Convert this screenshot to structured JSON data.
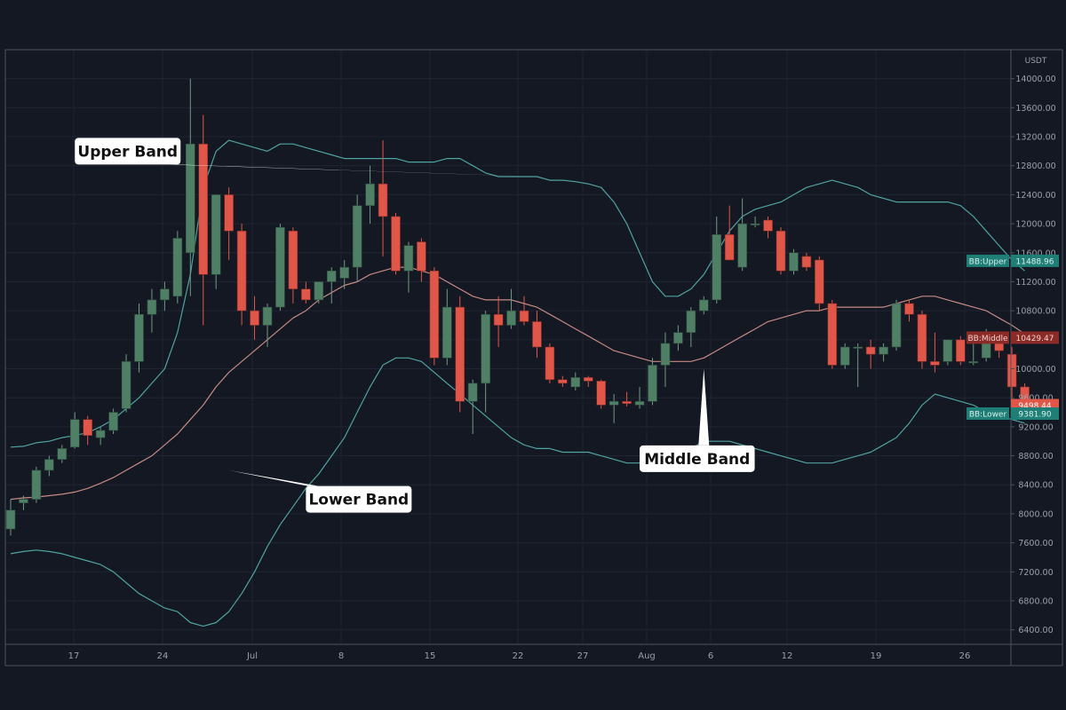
{
  "chart_data": {
    "type": "candlestick",
    "title": "",
    "y_unit": "USDT",
    "ylim": [
      6200,
      14400
    ],
    "y_ticks": [
      6400,
      6800,
      7200,
      7600,
      8000,
      8400,
      8800,
      9200,
      9600,
      10000,
      10400,
      10800,
      11200,
      11600,
      12000,
      12400,
      12800,
      13200,
      13600,
      14000
    ],
    "x_ticks": [
      "17",
      "24",
      "Jul",
      "8",
      "15",
      "22",
      "27",
      "Aug",
      "6",
      "12",
      "19",
      "26"
    ],
    "grid": true,
    "colors": {
      "background": "#141822",
      "grid": "#1f2534",
      "border": "#4a5260",
      "axis_text": "#9aa0ab",
      "up_candle": "#4f8066",
      "down_candle": "#e0574a",
      "upper_band": "#4fa3a0",
      "lower_band": "#4fa3a0",
      "middle_band": "#c58a84",
      "callout_bg": "#ffffff",
      "callout_text": "#111111"
    },
    "candles": [
      {
        "o": 7790,
        "h": 8200,
        "l": 7700,
        "c": 8050
      },
      {
        "o": 8150,
        "h": 8250,
        "l": 8050,
        "c": 8200
      },
      {
        "o": 8200,
        "h": 8650,
        "l": 8150,
        "c": 8600
      },
      {
        "o": 8600,
        "h": 8800,
        "l": 8520,
        "c": 8750
      },
      {
        "o": 8750,
        "h": 8950,
        "l": 8700,
        "c": 8900
      },
      {
        "o": 8920,
        "h": 9400,
        "l": 8900,
        "c": 9300
      },
      {
        "o": 9300,
        "h": 9350,
        "l": 8950,
        "c": 9080
      },
      {
        "o": 9050,
        "h": 9200,
        "l": 8950,
        "c": 9150
      },
      {
        "o": 9150,
        "h": 9450,
        "l": 9100,
        "c": 9400
      },
      {
        "o": 9450,
        "h": 10200,
        "l": 9400,
        "c": 10100
      },
      {
        "o": 10100,
        "h": 10900,
        "l": 9950,
        "c": 10750
      },
      {
        "o": 10750,
        "h": 11100,
        "l": 10500,
        "c": 10950
      },
      {
        "o": 10950,
        "h": 11200,
        "l": 10800,
        "c": 11100
      },
      {
        "o": 11000,
        "h": 11900,
        "l": 10900,
        "c": 11800
      },
      {
        "o": 11600,
        "h": 14000,
        "l": 11000,
        "c": 13100
      },
      {
        "o": 13100,
        "h": 13500,
        "l": 10600,
        "c": 11300
      },
      {
        "o": 11300,
        "h": 12400,
        "l": 11100,
        "c": 12400
      },
      {
        "o": 12400,
        "h": 12500,
        "l": 11500,
        "c": 11900
      },
      {
        "o": 11900,
        "h": 12000,
        "l": 10600,
        "c": 10800
      },
      {
        "o": 10800,
        "h": 11000,
        "l": 10400,
        "c": 10600
      },
      {
        "o": 10600,
        "h": 10900,
        "l": 10300,
        "c": 10850
      },
      {
        "o": 10850,
        "h": 12000,
        "l": 10800,
        "c": 11950
      },
      {
        "o": 11900,
        "h": 11950,
        "l": 10900,
        "c": 11100
      },
      {
        "o": 11100,
        "h": 11200,
        "l": 10900,
        "c": 10950
      },
      {
        "o": 10950,
        "h": 11200,
        "l": 10900,
        "c": 11200
      },
      {
        "o": 11200,
        "h": 11400,
        "l": 10900,
        "c": 11350
      },
      {
        "o": 11250,
        "h": 11500,
        "l": 11100,
        "c": 11400
      },
      {
        "o": 11400,
        "h": 12400,
        "l": 11200,
        "c": 12250
      },
      {
        "o": 12250,
        "h": 12800,
        "l": 12000,
        "c": 12550
      },
      {
        "o": 12550,
        "h": 13150,
        "l": 11550,
        "c": 12100
      },
      {
        "o": 12100,
        "h": 12150,
        "l": 11300,
        "c": 11350
      },
      {
        "o": 11350,
        "h": 11750,
        "l": 11050,
        "c": 11700
      },
      {
        "o": 11750,
        "h": 11800,
        "l": 11200,
        "c": 11350
      },
      {
        "o": 11350,
        "h": 11400,
        "l": 10050,
        "c": 10150
      },
      {
        "o": 10150,
        "h": 11100,
        "l": 10050,
        "c": 10850
      },
      {
        "o": 10850,
        "h": 11000,
        "l": 9400,
        "c": 9550
      },
      {
        "o": 9550,
        "h": 9850,
        "l": 9100,
        "c": 9800
      },
      {
        "o": 9800,
        "h": 10800,
        "l": 9400,
        "c": 10750
      },
      {
        "o": 10750,
        "h": 11000,
        "l": 10300,
        "c": 10600
      },
      {
        "o": 10600,
        "h": 11100,
        "l": 10550,
        "c": 10800
      },
      {
        "o": 10800,
        "h": 11000,
        "l": 10600,
        "c": 10650
      },
      {
        "o": 10650,
        "h": 10800,
        "l": 10150,
        "c": 10300
      },
      {
        "o": 10300,
        "h": 10350,
        "l": 9800,
        "c": 9850
      },
      {
        "o": 9850,
        "h": 9900,
        "l": 9750,
        "c": 9800
      },
      {
        "o": 9750,
        "h": 9950,
        "l": 9700,
        "c": 9880
      },
      {
        "o": 9880,
        "h": 9900,
        "l": 9750,
        "c": 9830
      },
      {
        "o": 9830,
        "h": 9850,
        "l": 9450,
        "c": 9500
      },
      {
        "o": 9500,
        "h": 9650,
        "l": 9250,
        "c": 9550
      },
      {
        "o": 9550,
        "h": 9680,
        "l": 9480,
        "c": 9520
      },
      {
        "o": 9500,
        "h": 9750,
        "l": 9450,
        "c": 9550
      },
      {
        "o": 9550,
        "h": 10150,
        "l": 9500,
        "c": 10050
      },
      {
        "o": 10050,
        "h": 10500,
        "l": 9750,
        "c": 10350
      },
      {
        "o": 10350,
        "h": 10600,
        "l": 10250,
        "c": 10500
      },
      {
        "o": 10500,
        "h": 10850,
        "l": 10300,
        "c": 10800
      },
      {
        "o": 10800,
        "h": 11000,
        "l": 10750,
        "c": 10950
      },
      {
        "o": 10950,
        "h": 12100,
        "l": 10900,
        "c": 11850
      },
      {
        "o": 11850,
        "h": 12250,
        "l": 11500,
        "c": 11500
      },
      {
        "o": 11400,
        "h": 12350,
        "l": 11350,
        "c": 12000
      },
      {
        "o": 12000,
        "h": 12100,
        "l": 11950,
        "c": 12000
      },
      {
        "o": 12050,
        "h": 12100,
        "l": 11800,
        "c": 11900
      },
      {
        "o": 11900,
        "h": 11950,
        "l": 11300,
        "c": 11350
      },
      {
        "o": 11350,
        "h": 11650,
        "l": 11300,
        "c": 11600
      },
      {
        "o": 11550,
        "h": 11600,
        "l": 11350,
        "c": 11400
      },
      {
        "o": 11500,
        "h": 11550,
        "l": 10800,
        "c": 10900
      },
      {
        "o": 10900,
        "h": 10950,
        "l": 10000,
        "c": 10050
      },
      {
        "o": 10050,
        "h": 10350,
        "l": 10000,
        "c": 10300
      },
      {
        "o": 10300,
        "h": 10350,
        "l": 9750,
        "c": 10300
      },
      {
        "o": 10300,
        "h": 10400,
        "l": 10000,
        "c": 10200
      },
      {
        "o": 10200,
        "h": 10350,
        "l": 10100,
        "c": 10300
      },
      {
        "o": 10300,
        "h": 10950,
        "l": 10250,
        "c": 10900
      },
      {
        "o": 10900,
        "h": 10950,
        "l": 10650,
        "c": 10750
      },
      {
        "o": 10750,
        "h": 10800,
        "l": 10000,
        "c": 10100
      },
      {
        "o": 10100,
        "h": 10500,
        "l": 9950,
        "c": 10050
      },
      {
        "o": 10100,
        "h": 10400,
        "l": 10050,
        "c": 10400
      },
      {
        "o": 10400,
        "h": 10450,
        "l": 10050,
        "c": 10100
      },
      {
        "o": 10100,
        "h": 10400,
        "l": 10050,
        "c": 10100
      },
      {
        "o": 10150,
        "h": 10550,
        "l": 10100,
        "c": 10400
      },
      {
        "o": 10400,
        "h": 10500,
        "l": 10150,
        "c": 10250
      },
      {
        "o": 10200,
        "h": 10300,
        "l": 9550,
        "c": 9750
      },
      {
        "o": 9750,
        "h": 9800,
        "l": 9400,
        "c": 9500
      }
    ],
    "series": [
      {
        "name": "BB:Upper",
        "values": [
          8920,
          8930,
          8980,
          9000,
          9050,
          9080,
          9120,
          9200,
          9300,
          9450,
          9600,
          9800,
          10000,
          10500,
          11300,
          12500,
          13000,
          13150,
          13100,
          13050,
          13000,
          13100,
          13100,
          13050,
          13000,
          12950,
          12900,
          12900,
          12900,
          12900,
          12900,
          12850,
          12850,
          12850,
          12900,
          12900,
          12800,
          12700,
          12650,
          12650,
          12650,
          12650,
          12600,
          12600,
          12580,
          12550,
          12500,
          12300,
          12000,
          11600,
          11200,
          11000,
          11000,
          11100,
          11300,
          11600,
          11900,
          12100,
          12200,
          12250,
          12300,
          12400,
          12500,
          12550,
          12600,
          12550,
          12500,
          12400,
          12350,
          12300,
          12300,
          12300,
          12300,
          12300,
          12250,
          12100,
          11900,
          11700,
          11500,
          11350
        ]
      },
      {
        "name": "BB:Middle",
        "values": [
          8200,
          8220,
          8230,
          8250,
          8270,
          8300,
          8350,
          8420,
          8500,
          8600,
          8700,
          8800,
          8950,
          9100,
          9300,
          9500,
          9750,
          9950,
          10100,
          10250,
          10400,
          10550,
          10700,
          10800,
          10950,
          11050,
          11150,
          11200,
          11300,
          11350,
          11400,
          11400,
          11350,
          11300,
          11200,
          11100,
          11000,
          10950,
          10950,
          10950,
          10900,
          10850,
          10750,
          10650,
          10550,
          10450,
          10350,
          10250,
          10200,
          10150,
          10100,
          10100,
          10100,
          10100,
          10150,
          10250,
          10350,
          10450,
          10550,
          10650,
          10700,
          10750,
          10800,
          10800,
          10850,
          10850,
          10850,
          10850,
          10850,
          10900,
          10950,
          11000,
          11000,
          10950,
          10900,
          10850,
          10800,
          10700,
          10600,
          10480
        ]
      },
      {
        "name": "BB:Lower",
        "values": [
          7450,
          7480,
          7500,
          7480,
          7450,
          7400,
          7350,
          7300,
          7200,
          7050,
          6900,
          6800,
          6700,
          6650,
          6500,
          6450,
          6500,
          6650,
          6900,
          7200,
          7550,
          7850,
          8100,
          8350,
          8550,
          8800,
          9050,
          9400,
          9750,
          10050,
          10150,
          10150,
          10100,
          9950,
          9800,
          9650,
          9500,
          9350,
          9200,
          9050,
          8950,
          8900,
          8900,
          8850,
          8850,
          8850,
          8800,
          8750,
          8700,
          8700,
          8750,
          8800,
          8850,
          8900,
          9000,
          9000,
          9000,
          8950,
          8900,
          8850,
          8800,
          8750,
          8700,
          8700,
          8700,
          8750,
          8800,
          8850,
          8950,
          9050,
          9250,
          9500,
          9650,
          9600,
          9550,
          9500,
          9400,
          9350,
          9300,
          9250
        ]
      }
    ],
    "price_labels": [
      {
        "text": "BB:Upper",
        "value_text": "11488.96",
        "value": 11488.96,
        "type": "upper"
      },
      {
        "text": "BB:Middle",
        "value_text": "10429.47",
        "value": 10429.47,
        "type": "middle"
      },
      {
        "text": "",
        "value_text": "9498.44",
        "value": 9498.44,
        "type": "last"
      },
      {
        "text": "BB:Lower",
        "value_text": "9381.90",
        "value": 9381.9,
        "type": "lower"
      }
    ],
    "annotations": [
      {
        "label": "Upper Band",
        "text_x": 5,
        "text_y": 13000,
        "pointer_x": 41,
        "pointer_y": 12650
      },
      {
        "label": "Lower Band",
        "text_x": 23,
        "text_y": 8200,
        "pointer_x": 17,
        "pointer_y": 8600
      },
      {
        "label": "Middle Band",
        "text_x": 49,
        "text_y": 8760,
        "pointer_x": 54,
        "pointer_y": 10000
      }
    ]
  }
}
